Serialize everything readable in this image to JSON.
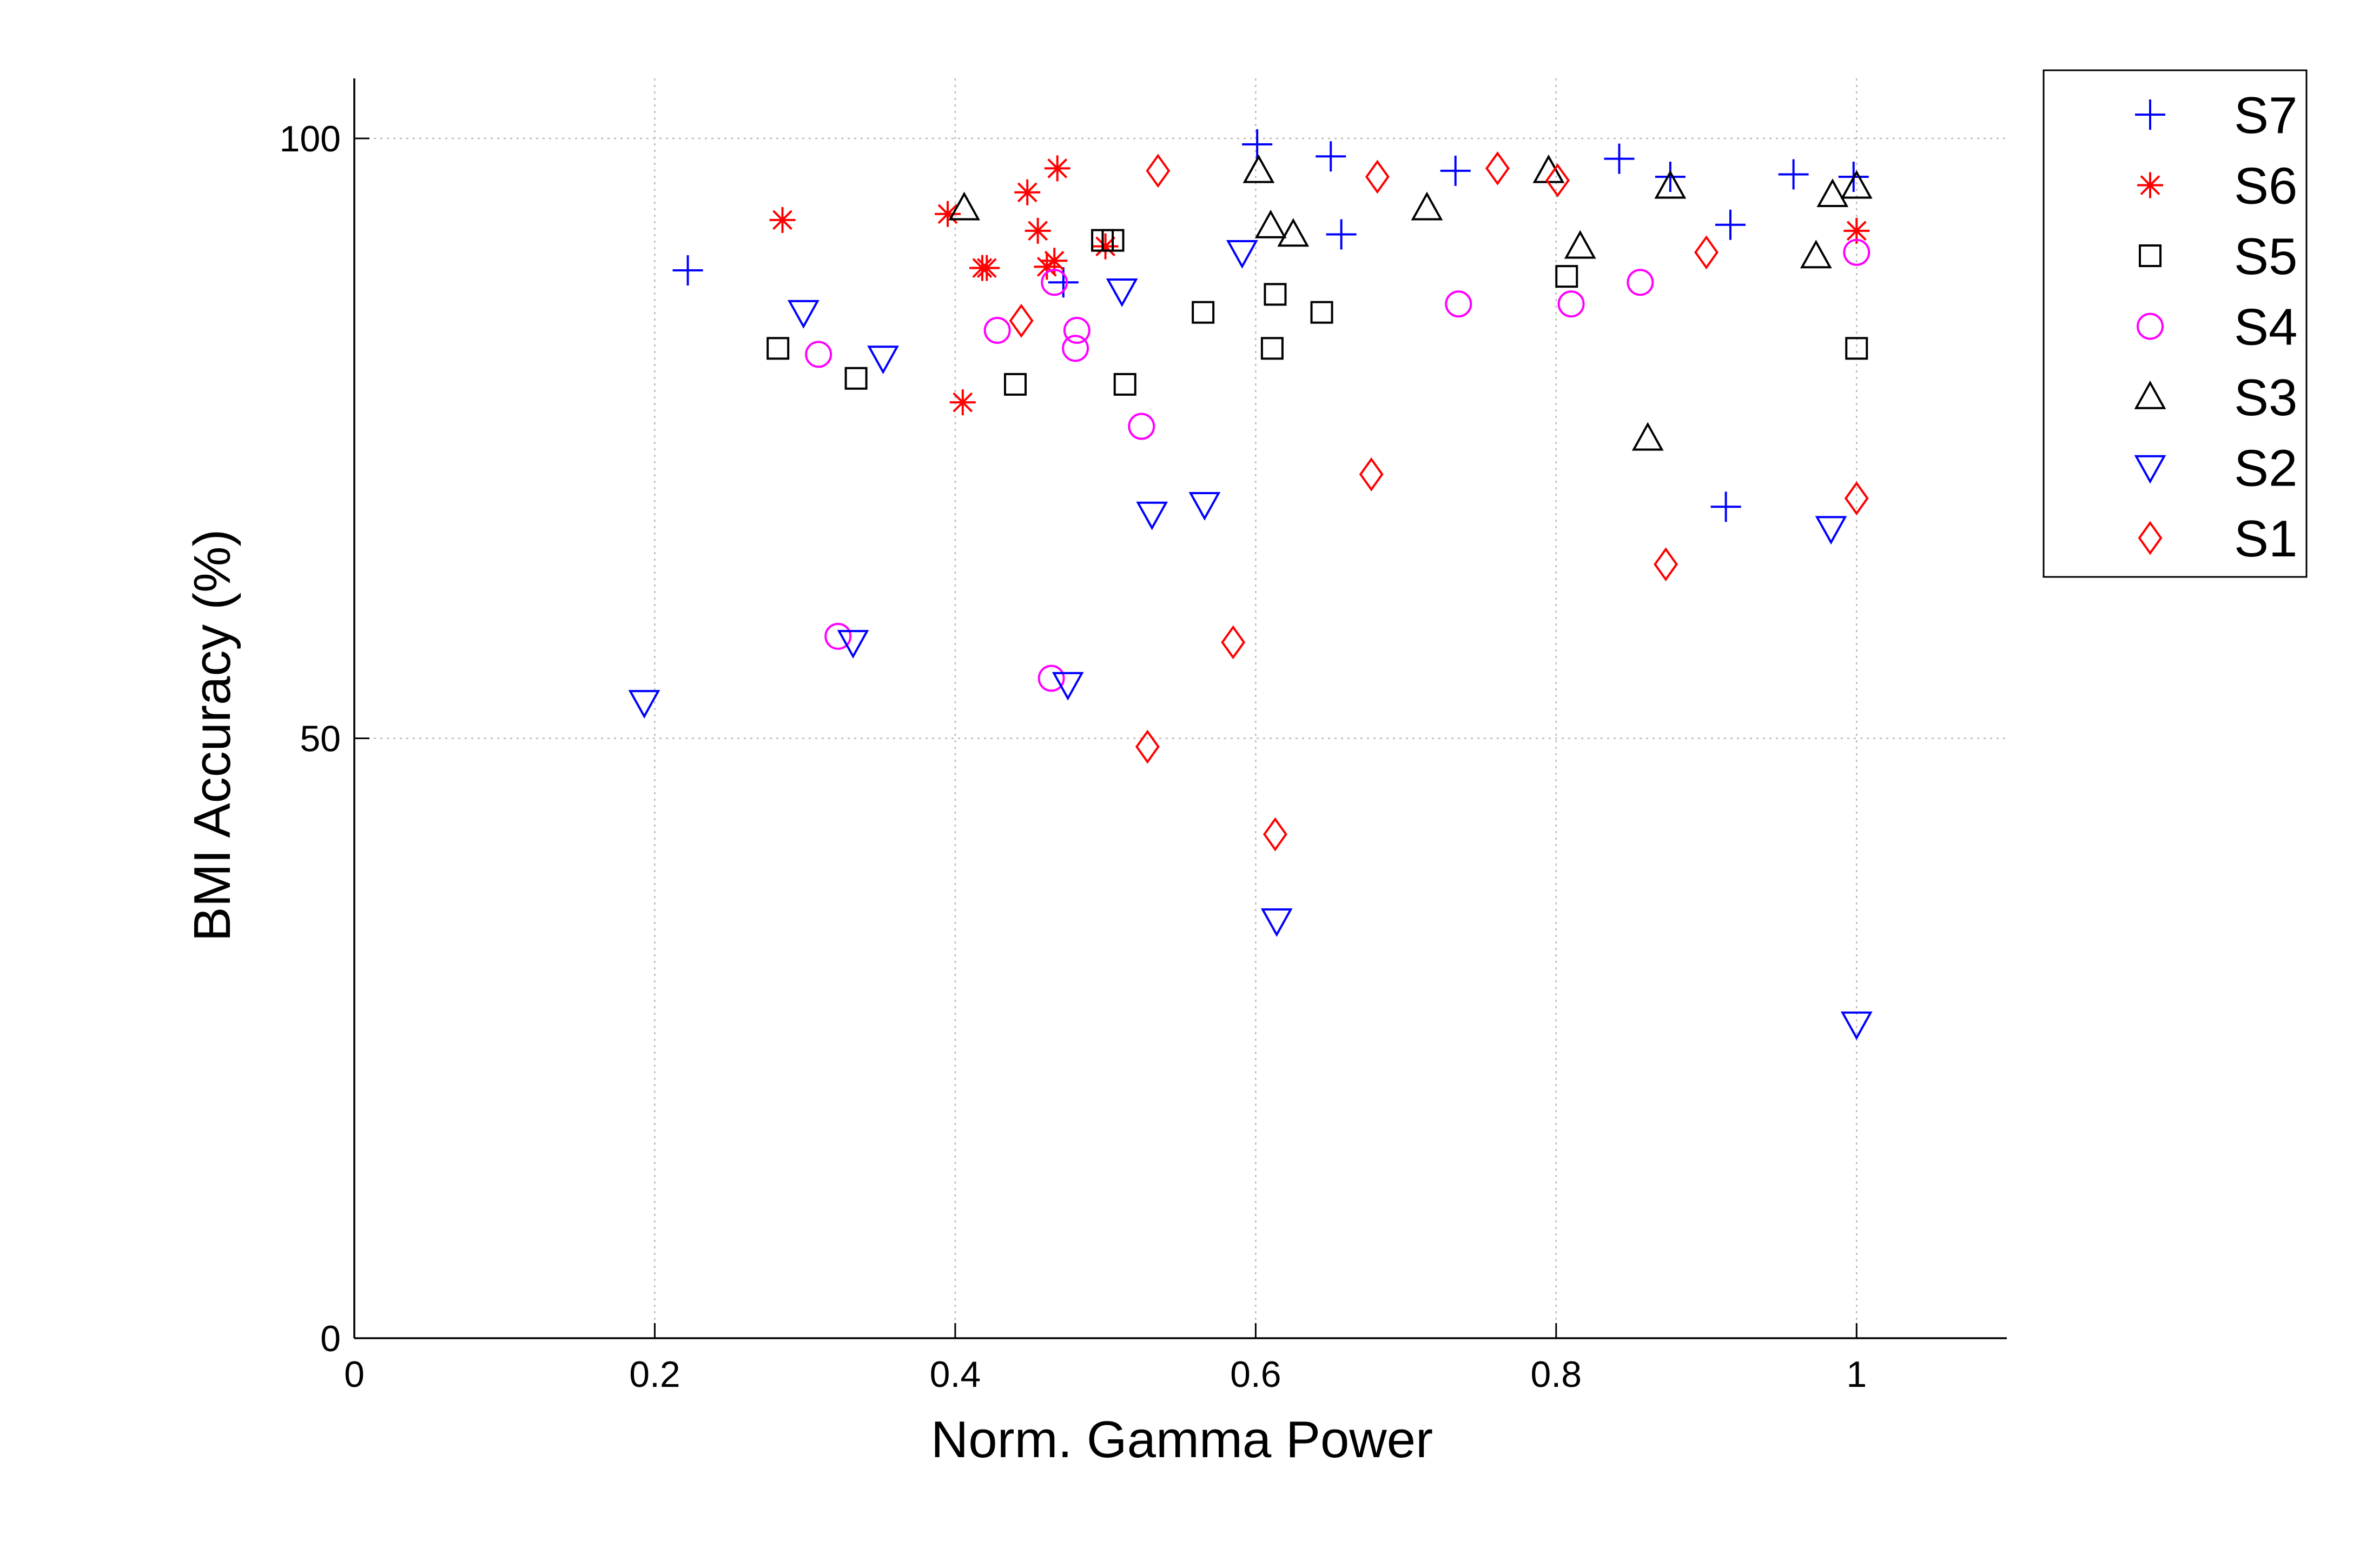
{
  "chart_data": {
    "type": "scatter",
    "xlabel": "Norm. Gamma Power",
    "ylabel": "BMI Accuracy (%)",
    "xlim": [
      0,
      1.1
    ],
    "ylim": [
      0,
      105
    ],
    "xticks": [
      0,
      0.2,
      0.4,
      0.6,
      0.8,
      1
    ],
    "xtick_labels": [
      "0",
      "0.2",
      "0.4",
      "0.6",
      "0.8",
      "1"
    ],
    "yticks": [
      0,
      50,
      100
    ],
    "ytick_labels": [
      "0",
      "50",
      "100"
    ],
    "grid": true,
    "legend_position": "outside top-right",
    "series": [
      {
        "name": "S7",
        "marker": "plus",
        "color": "#0000ff",
        "points": [
          [
            0.222,
            89
          ],
          [
            0.472,
            88
          ],
          [
            0.601,
            99.5
          ],
          [
            0.65,
            98.5
          ],
          [
            0.657,
            92
          ],
          [
            0.733,
            97.3
          ],
          [
            0.842,
            98.3
          ],
          [
            0.876,
            96.8
          ],
          [
            0.916,
            92.8
          ],
          [
            0.958,
            97
          ],
          [
            0.998,
            96.8
          ],
          [
            0.913,
            69.3
          ]
        ]
      },
      {
        "name": "S6",
        "marker": "star",
        "color": "#ff0000",
        "points": [
          [
            0.285,
            93.2
          ],
          [
            0.395,
            93.7
          ],
          [
            0.405,
            78
          ],
          [
            0.418,
            89.2
          ],
          [
            0.421,
            89.2
          ],
          [
            0.448,
            95.5
          ],
          [
            0.455,
            92.3
          ],
          [
            0.461,
            89.3
          ],
          [
            0.466,
            89.8
          ],
          [
            0.468,
            97.5
          ],
          [
            0.5,
            91
          ],
          [
            1.0,
            92.3
          ]
        ]
      },
      {
        "name": "S5",
        "marker": "square",
        "color": "#000000",
        "points": [
          [
            0.282,
            82.5
          ],
          [
            0.334,
            80
          ],
          [
            0.44,
            79.5
          ],
          [
            0.498,
            91.5
          ],
          [
            0.505,
            91.5
          ],
          [
            0.513,
            79.5
          ],
          [
            0.565,
            85.5
          ],
          [
            0.611,
            82.5
          ],
          [
            0.613,
            87
          ],
          [
            0.644,
            85.5
          ],
          [
            0.807,
            88.5
          ],
          [
            1.0,
            82.5
          ]
        ]
      },
      {
        "name": "S4",
        "marker": "circle",
        "color": "#ff00ff",
        "points": [
          [
            0.309,
            82
          ],
          [
            0.322,
            58.5
          ],
          [
            0.428,
            84
          ],
          [
            0.464,
            55
          ],
          [
            0.466,
            88
          ],
          [
            0.481,
            84
          ],
          [
            0.48,
            82.5
          ],
          [
            0.524,
            76
          ],
          [
            0.735,
            86.2
          ],
          [
            0.81,
            86.2
          ],
          [
            0.856,
            88
          ],
          [
            1.0,
            90.5
          ]
        ]
      },
      {
        "name": "S3",
        "marker": "triangle-up",
        "color": "#000000",
        "points": [
          [
            0.406,
            94.2
          ],
          [
            0.602,
            97.3
          ],
          [
            0.61,
            92.7
          ],
          [
            0.625,
            92
          ],
          [
            0.714,
            94.2
          ],
          [
            0.795,
            97.3
          ],
          [
            0.816,
            91
          ],
          [
            0.861,
            75
          ],
          [
            0.876,
            96
          ],
          [
            0.973,
            90.2
          ],
          [
            0.984,
            95.3
          ],
          [
            1.0,
            96
          ]
        ]
      },
      {
        "name": "S2",
        "marker": "triangle-down",
        "color": "#0000ff",
        "points": [
          [
            0.193,
            53
          ],
          [
            0.299,
            85.5
          ],
          [
            0.332,
            58
          ],
          [
            0.352,
            81.7
          ],
          [
            0.475,
            54.5
          ],
          [
            0.511,
            87.3
          ],
          [
            0.531,
            68.7
          ],
          [
            0.566,
            69.5
          ],
          [
            0.591,
            90.5
          ],
          [
            0.614,
            34.8
          ],
          [
            0.983,
            67.5
          ],
          [
            1.0,
            26.2
          ]
        ]
      },
      {
        "name": "S1",
        "marker": "diamond",
        "color": "#ff0000",
        "points": [
          [
            0.444,
            84.8
          ],
          [
            0.528,
            49.3
          ],
          [
            0.535,
            97.3
          ],
          [
            0.585,
            58
          ],
          [
            0.613,
            42
          ],
          [
            0.677,
            72
          ],
          [
            0.681,
            96.8
          ],
          [
            0.761,
            97.5
          ],
          [
            0.801,
            96.5
          ],
          [
            0.873,
            64.5
          ],
          [
            0.9,
            90.5
          ],
          [
            1.0,
            70
          ]
        ]
      }
    ]
  }
}
